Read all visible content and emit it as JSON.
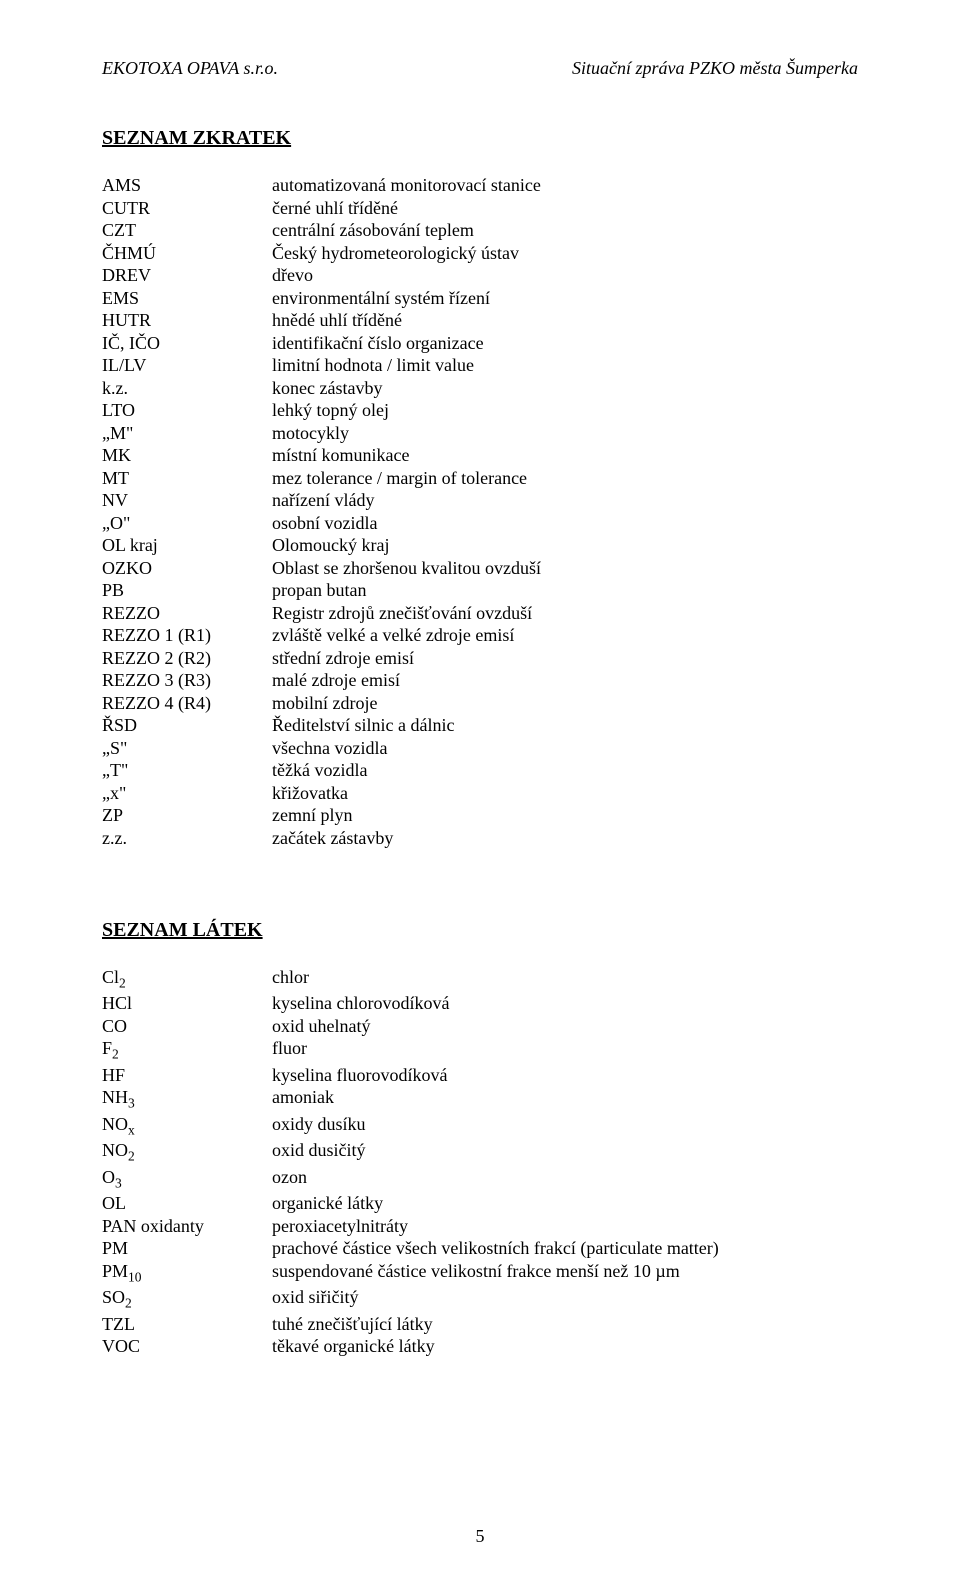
{
  "header": {
    "left": "EKOTOXA OPAVA s.r.o.",
    "right": "Situační zpráva PZKO města Šumperka"
  },
  "section1": {
    "title": "SEZNAM ZKRATEK",
    "rows": [
      {
        "code": "AMS",
        "def": "automatizovaná monitorovací stanice"
      },
      {
        "code": "CUTR",
        "def": "černé uhlí tříděné"
      },
      {
        "code": "CZT",
        "def": "centrální zásobování teplem"
      },
      {
        "code": "ČHMÚ",
        "def": "Český hydrometeorologický ústav"
      },
      {
        "code": "DREV",
        "def": "dřevo"
      },
      {
        "code": "EMS",
        "def": "environmentální systém řízení"
      },
      {
        "code": "HUTR",
        "def": "hnědé uhlí tříděné"
      },
      {
        "code": "IČ, IČO",
        "def": "identifikační číslo organizace"
      },
      {
        "code": "IL/LV",
        "def": "limitní hodnota / limit value"
      },
      {
        "code": "k.z.",
        "def": "konec zástavby"
      },
      {
        "code": "LTO",
        "def": "lehký topný olej"
      },
      {
        "code": "„M\"",
        "def": "motocykly"
      },
      {
        "code": "MK",
        "def": "místní komunikace"
      },
      {
        "code": "MT",
        "def": "mez tolerance / margin of tolerance"
      },
      {
        "code": "NV",
        "def": "nařízení vlády"
      },
      {
        "code": "„O\"",
        "def": "osobní vozidla"
      },
      {
        "code": "OL kraj",
        "def": "Olomoucký kraj"
      },
      {
        "code": "OZKO",
        "def": "Oblast se zhoršenou kvalitou ovzduší"
      },
      {
        "code": "PB",
        "def": "propan butan"
      },
      {
        "code": "REZZO",
        "def": "Registr zdrojů znečišťování ovzduší"
      },
      {
        "code": "REZZO 1 (R1)",
        "def": "zvláště velké a velké zdroje emisí"
      },
      {
        "code": "REZZO 2 (R2)",
        "def": "střední zdroje emisí"
      },
      {
        "code": "REZZO 3 (R3)",
        "def": "malé zdroje emisí"
      },
      {
        "code": "REZZO 4 (R4)",
        "def": "mobilní zdroje"
      },
      {
        "code": "ŘSD",
        "def": "Ředitelství silnic a dálnic"
      },
      {
        "code": "„S\"",
        "def": "všechna vozidla"
      },
      {
        "code": "„T\"",
        "def": "těžká vozidla"
      },
      {
        "code": "„x\"",
        "def": "křižovatka"
      },
      {
        "code": "ZP",
        "def": "zemní plyn"
      },
      {
        "code": "z.z.",
        "def": "začátek zástavby"
      }
    ]
  },
  "section2": {
    "title": "SEZNAM LÁTEK",
    "rows": [
      {
        "code": "Cl",
        "sub": "2",
        "def": "chlor"
      },
      {
        "code": "HCl",
        "def": "kyselina chlorovodíková"
      },
      {
        "code": "CO",
        "def": "oxid uhelnatý"
      },
      {
        "code": "F",
        "sub": "2",
        "def": "fluor"
      },
      {
        "code": "HF",
        "def": "kyselina fluorovodíková"
      },
      {
        "code": "NH",
        "sub": "3",
        "def": "amoniak"
      },
      {
        "code": "NO",
        "sub": "x",
        "def": "oxidy dusíku"
      },
      {
        "code": "NO",
        "sub": "2",
        "def": "oxid dusičitý"
      },
      {
        "code": "O",
        "sub": "3",
        "def": "ozon"
      },
      {
        "code": "OL",
        "def": "organické látky"
      },
      {
        "code": "PAN oxidanty",
        "def": "peroxiacetylnitráty"
      },
      {
        "code": "PM",
        "def": "prachové částice všech velikostních frakcí (particulate matter)"
      },
      {
        "code": "PM",
        "sub": "10",
        "def": "suspendované částice velikostní frakce menší než 10 µm"
      },
      {
        "code": "SO",
        "sub": "2",
        "def": "oxid siřičitý"
      },
      {
        "code": "TZL",
        "def": "tuhé znečišťující látky"
      },
      {
        "code": "VOC",
        "def": "těkavé organické látky"
      }
    ]
  },
  "page_number": "5"
}
